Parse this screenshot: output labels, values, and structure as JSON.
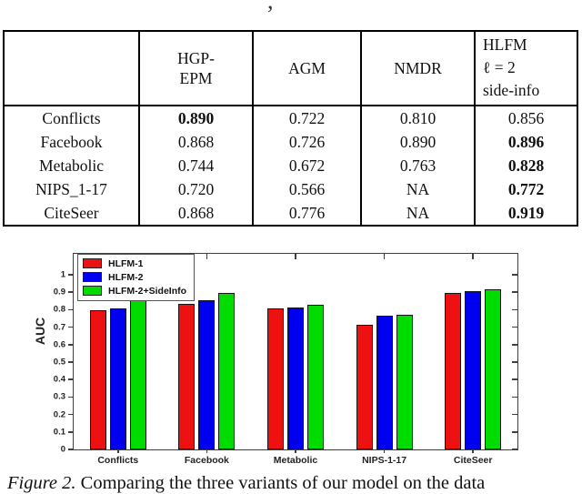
{
  "fragment": ",",
  "table": {
    "header": {
      "col0": "",
      "col1_line1": "HGP-",
      "col1_line2": "EPM",
      "col2": "AGM",
      "col3": "NMDR",
      "col4_line1": "HLFM",
      "col4_line2": "ℓ = 2",
      "col4_line3": "side-info"
    },
    "rows": [
      {
        "label": "Conflicts",
        "values": [
          {
            "text": "0.890",
            "bold": true
          },
          {
            "text": "0.722",
            "bold": false
          },
          {
            "text": "0.810",
            "bold": false
          },
          {
            "text": "0.856",
            "bold": false
          }
        ]
      },
      {
        "label": "Facebook",
        "values": [
          {
            "text": "0.868",
            "bold": false
          },
          {
            "text": "0.726",
            "bold": false
          },
          {
            "text": "0.890",
            "bold": false
          },
          {
            "text": "0.896",
            "bold": true
          }
        ]
      },
      {
        "label": "Metabolic",
        "values": [
          {
            "text": "0.744",
            "bold": false
          },
          {
            "text": "0.672",
            "bold": false
          },
          {
            "text": "0.763",
            "bold": false
          },
          {
            "text": "0.828",
            "bold": true
          }
        ]
      },
      {
        "label": "NIPS_1-17",
        "values": [
          {
            "text": "0.720",
            "bold": false
          },
          {
            "text": "0.566",
            "bold": false
          },
          {
            "text": "NA",
            "bold": false
          },
          {
            "text": "0.772",
            "bold": true
          }
        ]
      },
      {
        "label": "CiteSeer",
        "values": [
          {
            "text": "0.868",
            "bold": false
          },
          {
            "text": "0.776",
            "bold": false
          },
          {
            "text": "NA",
            "bold": false
          },
          {
            "text": "0.919",
            "bold": true
          }
        ]
      }
    ]
  },
  "chart_data": {
    "type": "bar",
    "categories": [
      "Conflicts",
      "Facebook",
      "Metabolic",
      "NIPS-1-17",
      "CiteSeer"
    ],
    "series": [
      {
        "name": "HLFM-1",
        "color": "#ee1111",
        "values": [
          0.795,
          0.836,
          0.805,
          0.712,
          0.897
        ]
      },
      {
        "name": "HLFM-2",
        "color": "#0000f0",
        "values": [
          0.81,
          0.857,
          0.812,
          0.765,
          0.905
        ]
      },
      {
        "name": "HLFM-2+SideInfo",
        "color": "#00dc00",
        "values": [
          0.856,
          0.896,
          0.828,
          0.772,
          0.919
        ]
      }
    ],
    "title": "",
    "xlabel": "",
    "ylabel": "AUC",
    "ylim": [
      0,
      1.12
    ],
    "yticks": [
      0,
      0.1,
      0.2,
      0.3,
      0.4,
      0.5,
      0.6,
      0.7,
      0.8,
      0.9,
      1
    ],
    "ytick_labels": [
      "0",
      "0.1",
      "0.2",
      "0.3",
      "0.4",
      "0.5",
      "0.6",
      "0.7",
      "0.8",
      "0.9",
      "1"
    ],
    "grid": false,
    "legend_position": "top-left"
  },
  "caption": {
    "prefix": "Figure 2.",
    "text": " Comparing the three variants of our model on the data"
  }
}
